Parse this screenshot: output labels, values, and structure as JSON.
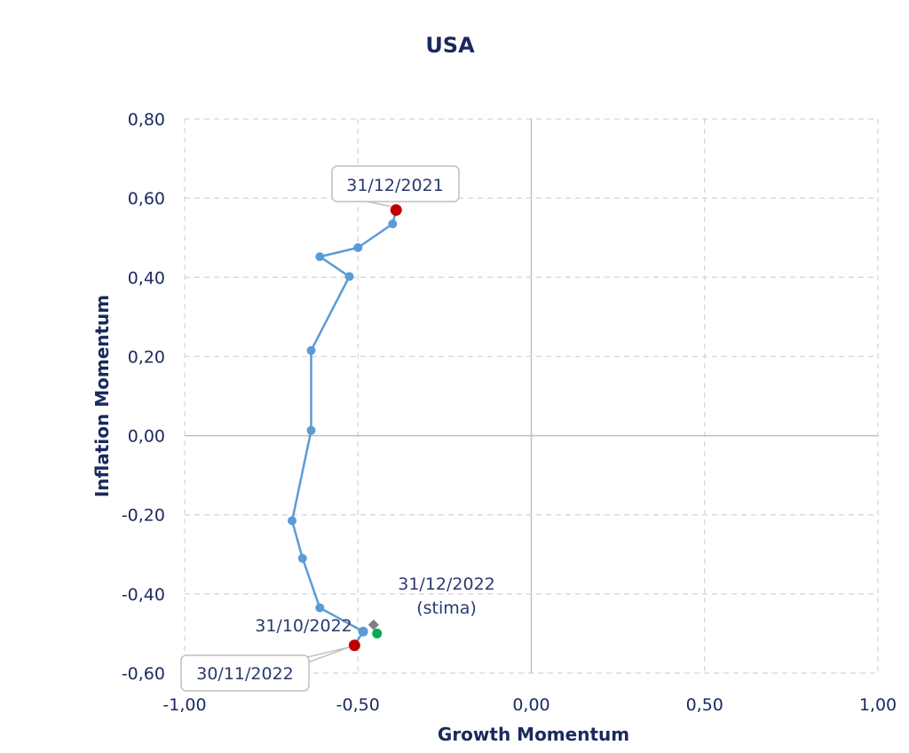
{
  "chart_data": {
    "type": "scatter",
    "title": "USA",
    "xlabel": "Growth Momentum",
    "ylabel": "Inflation Momentum",
    "xlim": [
      -1.0,
      1.0
    ],
    "ylim": [
      -0.6,
      0.8
    ],
    "x_ticks": [
      -1.0,
      -0.5,
      0.0,
      0.5,
      1.0
    ],
    "x_tick_labels": [
      "-1,00",
      "-0,50",
      "0,00",
      "0,50",
      "1,00"
    ],
    "y_ticks": [
      -0.6,
      -0.4,
      -0.2,
      0.0,
      0.2,
      0.4,
      0.6,
      0.8
    ],
    "y_tick_labels": [
      "-0,60",
      "-0,40",
      "-0,20",
      "0,00",
      "0,20",
      "0,40",
      "0,60",
      "0,80"
    ],
    "grid": true,
    "series": [
      {
        "color": "#5b9bd5",
        "points": [
          {
            "x": -0.39,
            "y": 0.57
          },
          {
            "x": -0.4,
            "y": 0.535
          },
          {
            "x": -0.5,
            "y": 0.475
          },
          {
            "x": -0.61,
            "y": 0.452
          },
          {
            "x": -0.525,
            "y": 0.402
          },
          {
            "x": -0.635,
            "y": 0.215
          },
          {
            "x": -0.635,
            "y": 0.013
          },
          {
            "x": -0.69,
            "y": -0.215
          },
          {
            "x": -0.66,
            "y": -0.31
          },
          {
            "x": -0.61,
            "y": -0.435
          },
          {
            "x": -0.485,
            "y": -0.495
          },
          {
            "x": -0.51,
            "y": -0.53
          }
        ]
      }
    ],
    "highlighted_points": [
      {
        "x": -0.39,
        "y": 0.57,
        "color": "#c00000",
        "label": "31/12/2021",
        "boxed": true
      },
      {
        "x": -0.485,
        "y": -0.495,
        "color": "#5b9bd5",
        "label": "31/10/2022",
        "boxed": false
      },
      {
        "x": -0.51,
        "y": -0.53,
        "color": "#c00000",
        "label": "30/11/2022",
        "boxed": true
      },
      {
        "x": -0.445,
        "y": -0.5,
        "color": "#00b050",
        "label": "31/12/2022\n(stima)",
        "boxed": false
      },
      {
        "x": -0.455,
        "y": -0.478,
        "color": "#7f7f7f",
        "marker": "diamond"
      }
    ]
  }
}
